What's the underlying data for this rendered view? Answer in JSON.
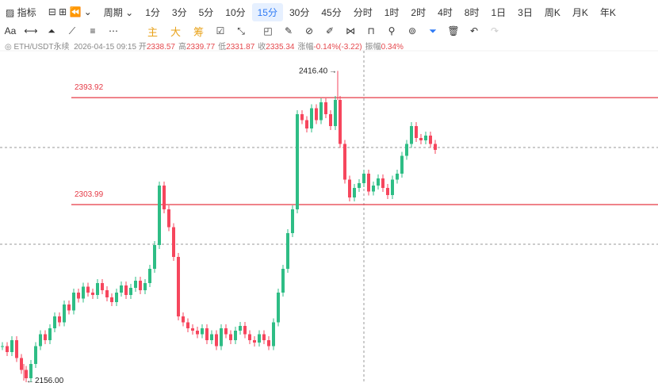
{
  "toolbar": {
    "indicator": "指标",
    "period": "周期",
    "intervals": [
      "1分",
      "3分",
      "5分",
      "10分",
      "15分",
      "30分",
      "45分",
      "分时",
      "1时",
      "2时",
      "4时",
      "8时",
      "1日",
      "3日",
      "周K",
      "月K",
      "年K"
    ],
    "selected": "15分"
  },
  "drawbar": {
    "font": "Aa",
    "modes": [
      "主",
      "大",
      "筹"
    ]
  },
  "info": {
    "symbol": "ETH/USDT永续",
    "time": "2026-04-15 09:15",
    "fields": [
      {
        "label": "开",
        "value": "2338.57"
      },
      {
        "label": "高",
        "value": "2339.77"
      },
      {
        "label": "低",
        "value": "2331.87"
      },
      {
        "label": "收",
        "value": "2335.34"
      },
      {
        "label": "涨幅",
        "value": "-0.14%(-3.22)"
      },
      {
        "label": "振幅",
        "value": "0.34%"
      }
    ]
  },
  "chart_data": {
    "type": "candlestick",
    "ylim": [
      2154,
      2444
    ],
    "levels": [
      2393.92,
      2303.99
    ],
    "high": {
      "value": 2416.4,
      "label": "2416.40"
    },
    "low": {
      "value": 2156,
      "label": "2156.00"
    },
    "up_color": "#2ebd85",
    "down_color": "#f6465d",
    "level_color": "#e53945",
    "closes": [
      2185,
      2180,
      2190,
      2175,
      2165,
      2158,
      2170,
      2185,
      2195,
      2190,
      2200,
      2210,
      2205,
      2220,
      2215,
      2230,
      2225,
      2235,
      2230,
      2228,
      2238,
      2232,
      2226,
      2222,
      2230,
      2236,
      2228,
      2234,
      2240,
      2232,
      2238,
      2250,
      2270,
      2320,
      2300,
      2285,
      2260,
      2210,
      2205,
      2200,
      2198,
      2195,
      2200,
      2190,
      2195,
      2185,
      2200,
      2195,
      2190,
      2198,
      2202,
      2195,
      2190,
      2188,
      2195,
      2190,
      2185,
      2205,
      2230,
      2250,
      2280,
      2300,
      2380,
      2375,
      2368,
      2385,
      2375,
      2390,
      2380,
      2370,
      2392,
      2355,
      2325,
      2310,
      2318,
      2322,
      2330,
      2315,
      2320,
      2326,
      2318,
      2312,
      2325,
      2330,
      2345,
      2355,
      2370,
      2360,
      2358,
      2362,
      2355,
      2350
    ]
  }
}
